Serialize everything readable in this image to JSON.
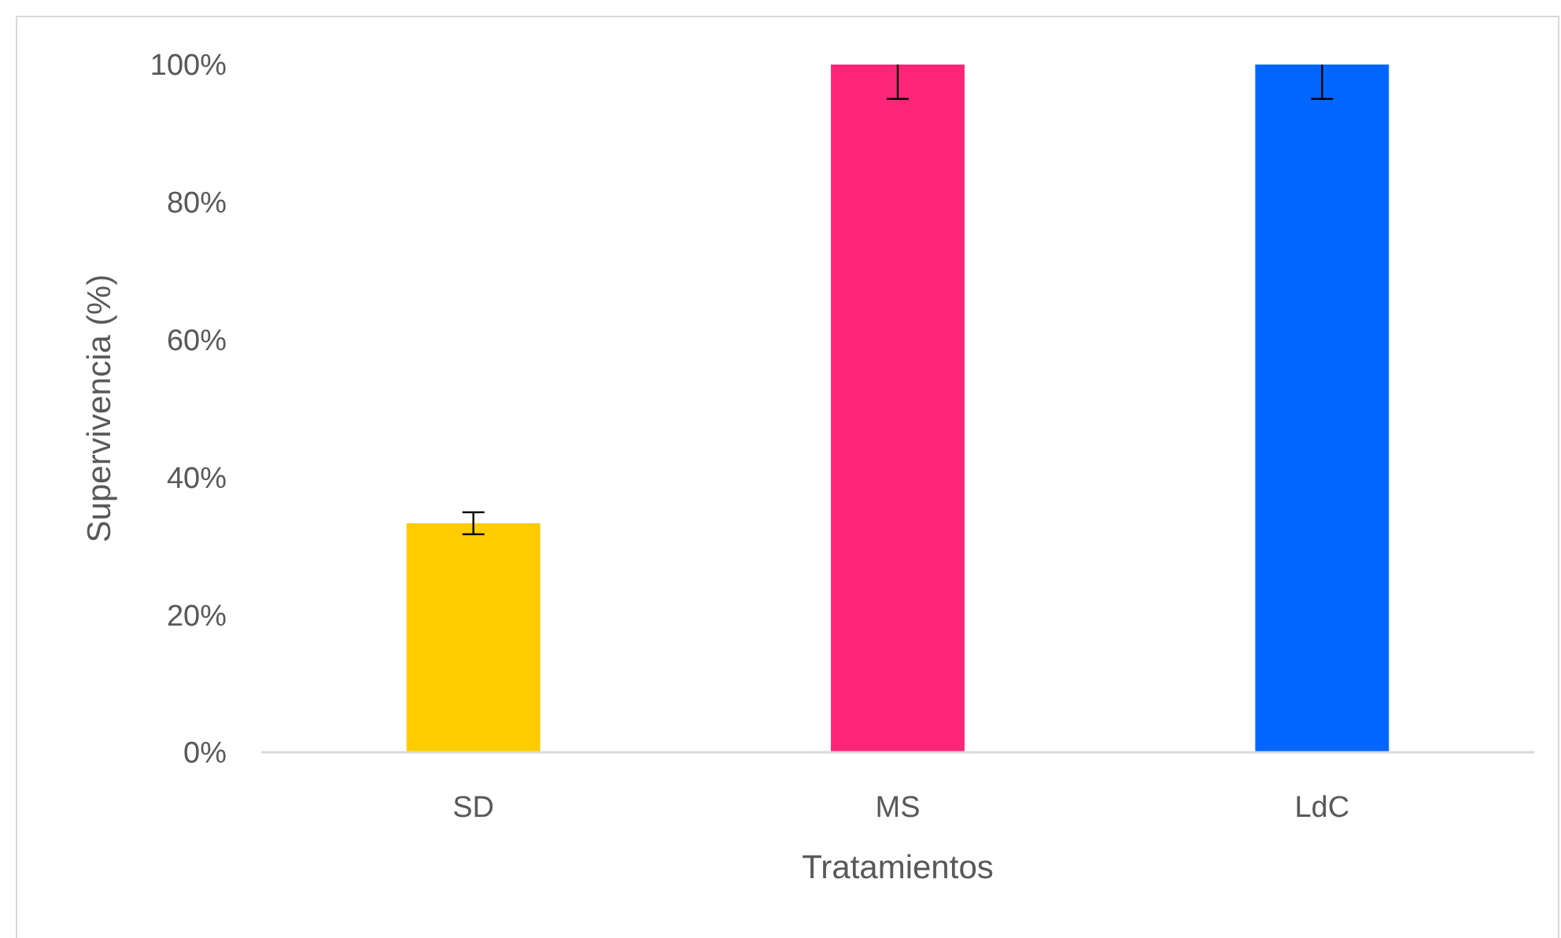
{
  "chart_data": {
    "type": "bar",
    "xlabel": "Tratamientos",
    "ylabel": "Supervivencia (%)",
    "categories": [
      "SD",
      "MS",
      "LdC"
    ],
    "values": [
      33.3,
      100,
      100
    ],
    "colors": [
      "#ffcc00",
      "#ff267a",
      "#0066ff"
    ],
    "errors": [
      1.6,
      [
        95,
        100
      ],
      [
        95,
        100
      ]
    ],
    "ylim": [
      0,
      100
    ],
    "yticks": [
      {
        "value": 0,
        "label": "0%"
      },
      {
        "value": 20,
        "label": "20%"
      },
      {
        "value": 40,
        "label": "40%"
      },
      {
        "value": 60,
        "label": "60%"
      },
      {
        "value": 80,
        "label": "80%"
      },
      {
        "value": 100,
        "label": "100%"
      }
    ],
    "grid": false
  }
}
